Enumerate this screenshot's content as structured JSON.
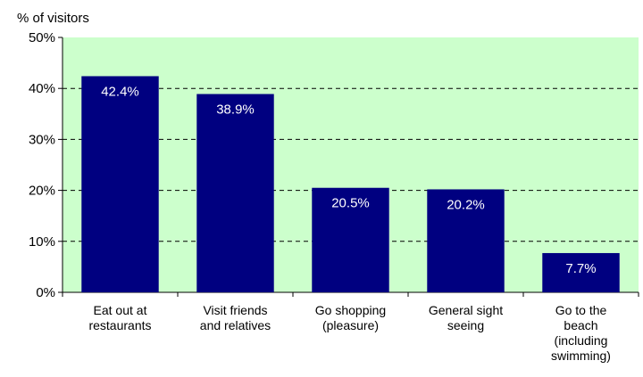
{
  "chart_data": {
    "type": "bar",
    "title": "",
    "xlabel": "",
    "ylabel": "% of visitors",
    "ylim": [
      0,
      50
    ],
    "yticks": [
      "0%",
      "10%",
      "20%",
      "30%",
      "40%",
      "50%"
    ],
    "grid": true,
    "categories": [
      [
        "Eat out at",
        "restaurants"
      ],
      [
        "Visit friends",
        "and relatives"
      ],
      [
        "Go shopping",
        "(pleasure)"
      ],
      [
        "General sight",
        "seeing"
      ],
      [
        "Go to the",
        "beach",
        "(including",
        "swimming)"
      ]
    ],
    "values": [
      42.4,
      38.9,
      20.5,
      20.2,
      7.7
    ],
    "data_labels": [
      "42.4%",
      "38.9%",
      "20.5%",
      "20.2%",
      "7.7%"
    ],
    "colors": {
      "bar": "#000080",
      "plot_background": "#ccffcc",
      "data_label": "#ffffff"
    }
  }
}
